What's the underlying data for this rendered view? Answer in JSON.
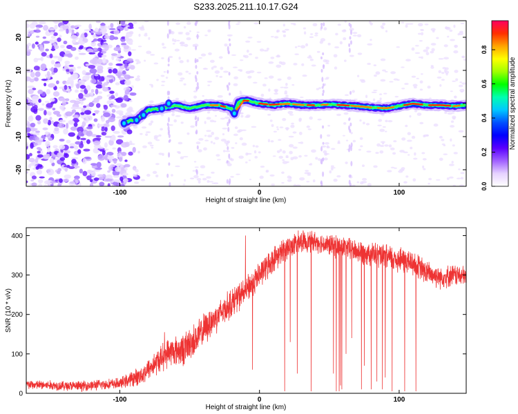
{
  "title": "S233.2025.211.10.17.G24",
  "chart_data": [
    {
      "type": "heatmap",
      "xlabel": "Height of straight line (km)",
      "ylabel": "Frequency (Hz)",
      "xlim": [
        -167,
        148
      ],
      "ylim": [
        -25,
        25
      ],
      "xticks": [
        -100,
        0,
        100
      ],
      "yticks": [
        -20,
        -10,
        0,
        10,
        20
      ],
      "colorbar": {
        "label": "Normalized spectral amplitude",
        "ticks": [
          0.0,
          0.2,
          0.4,
          0.6,
          0.8
        ],
        "range": [
          0,
          0.97
        ],
        "colors": [
          "#ffffff",
          "#e6d2ff",
          "#a060ff",
          "#5a00ff",
          "#0000ff",
          "#0050ff",
          "#00c8ff",
          "#00ffb0",
          "#00ff00",
          "#a0ff00",
          "#ffff00",
          "#ffa500",
          "#ff3000",
          "#ff0060"
        ]
      },
      "carrier_track": [
        [
          -97,
          -6
        ],
        [
          -92,
          -5
        ],
        [
          -88,
          -5
        ],
        [
          -84,
          -3.5
        ],
        [
          -80,
          -2
        ],
        [
          -70,
          -1.5
        ],
        [
          -60,
          -0.5
        ],
        [
          -50,
          -1.5
        ],
        [
          -40,
          -0.5
        ],
        [
          -30,
          -0.5
        ],
        [
          -20,
          -1.5
        ],
        [
          -18,
          -3
        ],
        [
          -15,
          0.5
        ],
        [
          -10,
          1
        ],
        [
          -5,
          0.5
        ],
        [
          0,
          0
        ],
        [
          10,
          -0.5
        ],
        [
          20,
          0
        ],
        [
          30,
          -0.5
        ],
        [
          40,
          -0.5
        ],
        [
          50,
          -0.3
        ],
        [
          60,
          -0.5
        ],
        [
          70,
          -0.8
        ],
        [
          80,
          -1.2
        ],
        [
          90,
          -1.5
        ],
        [
          100,
          -0.8
        ],
        [
          110,
          0
        ],
        [
          120,
          -0.5
        ],
        [
          130,
          -0.5
        ],
        [
          140,
          -0.8
        ],
        [
          147,
          -0.5
        ]
      ],
      "noise_region": [
        -167,
        -92
      ]
    },
    {
      "type": "line",
      "xlabel": "Height of straight line (km)",
      "ylabel": "SNR (10 * v/v)",
      "xlim": [
        -167,
        148
      ],
      "ylim": [
        0,
        420
      ],
      "xticks": [
        -100,
        0,
        100
      ],
      "yticks": [
        0,
        100,
        200,
        300,
        400
      ],
      "color": "#ee3333",
      "envelope": [
        [
          -167,
          22
        ],
        [
          -130,
          18
        ],
        [
          -100,
          25
        ],
        [
          -85,
          45
        ],
        [
          -75,
          75
        ],
        [
          -65,
          105
        ],
        [
          -55,
          110
        ],
        [
          -45,
          140
        ],
        [
          -35,
          180
        ],
        [
          -20,
          230
        ],
        [
          -10,
          260
        ],
        [
          0,
          300
        ],
        [
          10,
          340
        ],
        [
          20,
          370
        ],
        [
          30,
          385
        ],
        [
          40,
          385
        ],
        [
          50,
          375
        ],
        [
          60,
          370
        ],
        [
          70,
          360
        ],
        [
          80,
          355
        ],
        [
          90,
          345
        ],
        [
          100,
          340
        ],
        [
          110,
          330
        ],
        [
          120,
          305
        ],
        [
          130,
          295
        ],
        [
          140,
          300
        ],
        [
          148,
          295
        ]
      ],
      "noise_amplitude": [
        [
          -167,
          14
        ],
        [
          -100,
          16
        ],
        [
          -70,
          40
        ],
        [
          -50,
          50
        ],
        [
          -30,
          45
        ],
        [
          0,
          40
        ],
        [
          40,
          30
        ],
        [
          100,
          40
        ],
        [
          148,
          30
        ]
      ],
      "spikes": [
        [
          -68,
          155
        ],
        [
          -10,
          400
        ],
        [
          -5,
          60
        ]
      ],
      "dropouts": [
        [
          18,
          5
        ],
        [
          22,
          130
        ],
        [
          27,
          50
        ],
        [
          37,
          5
        ],
        [
          53,
          50
        ],
        [
          55,
          5
        ],
        [
          57,
          5
        ],
        [
          58,
          20
        ],
        [
          59,
          10
        ],
        [
          62,
          100
        ],
        [
          66,
          140
        ],
        [
          73,
          10
        ],
        [
          75,
          70
        ],
        [
          80,
          10
        ],
        [
          84,
          30
        ],
        [
          88,
          10
        ],
        [
          90,
          40
        ],
        [
          95,
          5
        ],
        [
          104,
          5
        ],
        [
          112,
          5
        ]
      ]
    }
  ]
}
